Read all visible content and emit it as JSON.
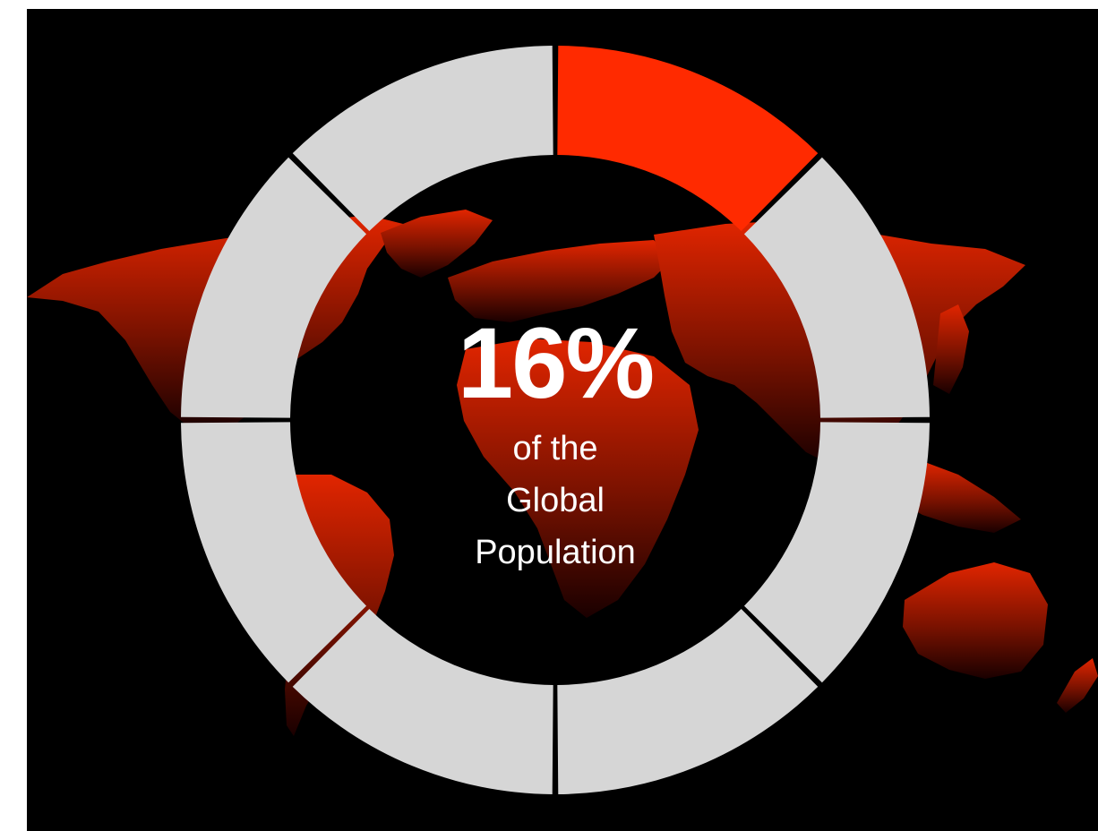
{
  "headline": {
    "value": "16%",
    "caption_line1": "of the",
    "caption_line2": "Global",
    "caption_line3": "Population"
  },
  "ring": {
    "segment_count": 8,
    "highlighted_segments": 1,
    "highlight_fraction": 0.125
  },
  "colors": {
    "background": "#000000",
    "highlight": "#ff2a00",
    "segment": "#d6d6d6",
    "map_top": "#e12500",
    "map_bottom": "#1a0000",
    "text": "#ffffff"
  },
  "icons": {
    "map": "world-map-silhouette"
  }
}
